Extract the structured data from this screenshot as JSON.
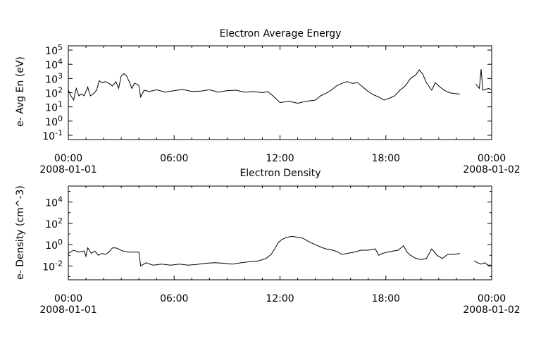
{
  "chart_data": [
    {
      "type": "line",
      "title": "Electron Average Energy",
      "ylabel": "e- Avg En (eV)",
      "xlabel": "",
      "yscale": "log",
      "ylim_exp": [
        -1.3,
        5.3
      ],
      "yticks": [
        {
          "exp": -1,
          "label": "10",
          "sup": "-1"
        },
        {
          "exp": 0,
          "label": "10",
          "sup": "0"
        },
        {
          "exp": 1,
          "label": "10",
          "sup": "1"
        },
        {
          "exp": 2,
          "label": "10",
          "sup": "2"
        },
        {
          "exp": 3,
          "label": "10",
          "sup": "3"
        },
        {
          "exp": 4,
          "label": "10",
          "sup": "4"
        },
        {
          "exp": 5,
          "label": "10",
          "sup": "5"
        }
      ],
      "xlim_hours": [
        0,
        24
      ],
      "xticks": [
        {
          "hour": 0,
          "time": "00:00",
          "date": "2008-01-01"
        },
        {
          "hour": 6,
          "time": "06:00",
          "date": ""
        },
        {
          "hour": 12,
          "time": "12:00",
          "date": ""
        },
        {
          "hour": 18,
          "time": "18:00",
          "date": ""
        },
        {
          "hour": 24,
          "time": "00:00",
          "date": "2008-01-02"
        }
      ],
      "series": [
        {
          "segments": [
            [
              [
                0.0,
                150
              ],
              [
                0.15,
                60
              ],
              [
                0.3,
                30
              ],
              [
                0.45,
                200
              ],
              [
                0.6,
                60
              ],
              [
                0.75,
                80
              ],
              [
                0.9,
                60
              ],
              [
                1.0,
                120
              ],
              [
                1.1,
                250
              ],
              [
                1.25,
                60
              ],
              [
                1.4,
                80
              ],
              [
                1.6,
                150
              ],
              [
                1.75,
                700
              ],
              [
                1.9,
                500
              ],
              [
                2.1,
                600
              ],
              [
                2.3,
                450
              ],
              [
                2.5,
                300
              ],
              [
                2.7,
                600
              ],
              [
                2.85,
                200
              ],
              [
                3.0,
                1500
              ],
              [
                3.15,
                2200
              ],
              [
                3.3,
                1500
              ],
              [
                3.45,
                600
              ],
              [
                3.6,
                200
              ],
              [
                3.75,
                450
              ],
              [
                3.9,
                400
              ],
              [
                4.0,
                300
              ],
              [
                4.1,
                50
              ],
              [
                4.3,
                150
              ],
              [
                4.6,
                120
              ],
              [
                5.0,
                160
              ],
              [
                5.5,
                110
              ],
              [
                6.0,
                140
              ],
              [
                6.5,
                170
              ],
              [
                7.0,
                120
              ],
              [
                7.5,
                130
              ],
              [
                8.0,
                160
              ],
              [
                8.5,
                110
              ],
              [
                9.0,
                140
              ],
              [
                9.5,
                150
              ],
              [
                10.0,
                110
              ],
              [
                10.5,
                120
              ],
              [
                11.0,
                100
              ],
              [
                11.3,
                120
              ],
              [
                11.6,
                60
              ],
              [
                12.0,
                20
              ],
              [
                12.5,
                25
              ],
              [
                13.0,
                18
              ],
              [
                13.5,
                25
              ],
              [
                14.0,
                30
              ],
              [
                14.3,
                60
              ],
              [
                14.6,
                90
              ],
              [
                14.9,
                150
              ],
              [
                15.2,
                300
              ],
              [
                15.5,
                450
              ],
              [
                15.8,
                600
              ],
              [
                16.1,
                450
              ],
              [
                16.4,
                500
              ],
              [
                16.7,
                250
              ],
              [
                17.0,
                120
              ],
              [
                17.3,
                70
              ],
              [
                17.6,
                50
              ],
              [
                17.9,
                30
              ],
              [
                18.2,
                40
              ],
              [
                18.5,
                60
              ],
              [
                18.8,
                150
              ],
              [
                19.1,
                300
              ],
              [
                19.4,
                1000
              ],
              [
                19.7,
                1800
              ],
              [
                19.9,
                4000
              ],
              [
                20.1,
                2000
              ],
              [
                20.3,
                500
              ],
              [
                20.6,
                150
              ],
              [
                20.8,
                500
              ],
              [
                21.0,
                300
              ],
              [
                21.3,
                150
              ],
              [
                21.6,
                100
              ],
              [
                21.8,
                90
              ],
              [
                22.2,
                80
              ]
            ],
            [
              [
                23.1,
                400
              ],
              [
                23.3,
                200
              ],
              [
                23.4,
                4500
              ],
              [
                23.5,
                150
              ],
              [
                23.7,
                180
              ],
              [
                23.85,
                200
              ],
              [
                24.0,
                150
              ]
            ]
          ]
        }
      ]
    },
    {
      "type": "line",
      "title": "Electron Density",
      "ylabel": "e- Density (cm^-3)",
      "xlabel": "",
      "yscale": "log",
      "ylim_exp": [
        -3.3,
        5.5
      ],
      "yticks": [
        {
          "exp": -2,
          "label": "10",
          "sup": "-2"
        },
        {
          "exp": 0,
          "label": "10",
          "sup": "0"
        },
        {
          "exp": 2,
          "label": "10",
          "sup": "2"
        },
        {
          "exp": 4,
          "label": "10",
          "sup": "4"
        }
      ],
      "xlim_hours": [
        0,
        24
      ],
      "xticks": [
        {
          "hour": 0,
          "time": "00:00",
          "date": "2008-01-01"
        },
        {
          "hour": 6,
          "time": "06:00",
          "date": ""
        },
        {
          "hour": 12,
          "time": "12:00",
          "date": ""
        },
        {
          "hour": 18,
          "time": "18:00",
          "date": ""
        },
        {
          "hour": 24,
          "time": "00:00",
          "date": "2008-01-02"
        }
      ],
      "series": [
        {
          "segments": [
            [
              [
                0.0,
                0.15
              ],
              [
                0.3,
                0.3
              ],
              [
                0.6,
                0.2
              ],
              [
                0.9,
                0.25
              ],
              [
                1.0,
                0.08
              ],
              [
                1.1,
                0.5
              ],
              [
                1.3,
                0.15
              ],
              [
                1.5,
                0.25
              ],
              [
                1.7,
                0.1
              ],
              [
                1.9,
                0.15
              ],
              [
                2.1,
                0.12
              ],
              [
                2.3,
                0.2
              ],
              [
                2.5,
                0.5
              ],
              [
                2.7,
                0.5
              ],
              [
                2.9,
                0.35
              ],
              [
                3.1,
                0.25
              ],
              [
                3.4,
                0.2
              ],
              [
                3.7,
                0.2
              ],
              [
                4.0,
                0.2
              ],
              [
                4.1,
                0.01
              ],
              [
                4.4,
                0.02
              ],
              [
                4.8,
                0.012
              ],
              [
                5.3,
                0.015
              ],
              [
                5.8,
                0.012
              ],
              [
                6.3,
                0.015
              ],
              [
                6.8,
                0.012
              ],
              [
                7.3,
                0.014
              ],
              [
                7.8,
                0.018
              ],
              [
                8.3,
                0.02
              ],
              [
                8.8,
                0.018
              ],
              [
                9.3,
                0.015
              ],
              [
                9.8,
                0.02
              ],
              [
                10.3,
                0.025
              ],
              [
                10.8,
                0.03
              ],
              [
                11.2,
                0.05
              ],
              [
                11.5,
                0.12
              ],
              [
                11.7,
                0.4
              ],
              [
                11.9,
                1.5
              ],
              [
                12.1,
                3
              ],
              [
                12.4,
                5
              ],
              [
                12.7,
                6
              ],
              [
                13.0,
                5
              ],
              [
                13.3,
                4
              ],
              [
                13.6,
                2
              ],
              [
                14.0,
                1
              ],
              [
                14.3,
                0.6
              ],
              [
                14.6,
                0.4
              ],
              [
                15.0,
                0.3
              ],
              [
                15.3,
                0.2
              ],
              [
                15.5,
                0.12
              ],
              [
                15.8,
                0.15
              ],
              [
                16.2,
                0.2
              ],
              [
                16.6,
                0.3
              ],
              [
                17.0,
                0.3
              ],
              [
                17.4,
                0.4
              ],
              [
                17.6,
                0.1
              ],
              [
                17.8,
                0.15
              ],
              [
                18.1,
                0.2
              ],
              [
                18.4,
                0.25
              ],
              [
                18.7,
                0.3
              ],
              [
                19.0,
                0.8
              ],
              [
                19.2,
                0.2
              ],
              [
                19.4,
                0.1
              ],
              [
                19.7,
                0.05
              ],
              [
                20.0,
                0.04
              ],
              [
                20.3,
                0.05
              ],
              [
                20.6,
                0.4
              ],
              [
                20.9,
                0.1
              ],
              [
                21.2,
                0.05
              ],
              [
                21.5,
                0.12
              ],
              [
                21.8,
                0.12
              ],
              [
                22.2,
                0.15
              ]
            ],
            [
              [
                23.0,
                0.03
              ],
              [
                23.2,
                0.02
              ],
              [
                23.4,
                0.015
              ],
              [
                23.6,
                0.02
              ],
              [
                23.8,
                0.012
              ],
              [
                24.0,
                0.012
              ]
            ]
          ]
        }
      ]
    }
  ]
}
